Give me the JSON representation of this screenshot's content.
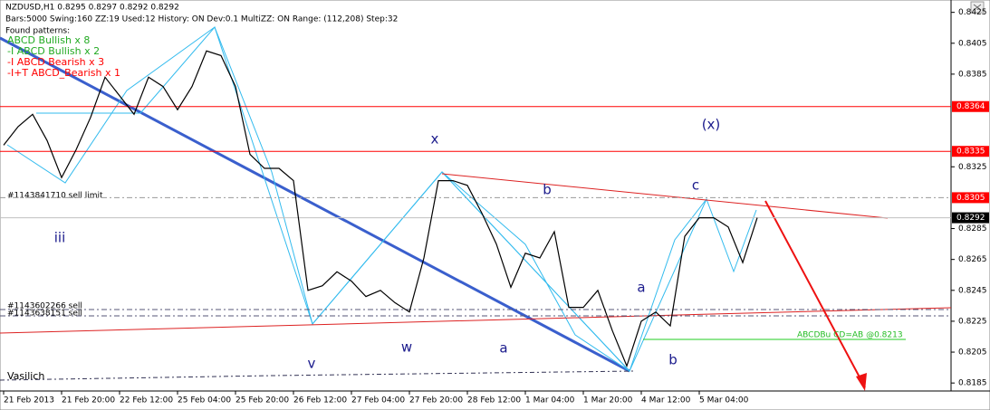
{
  "header": {
    "symbol_line": "NZDUSD,H1  0.8295 0.8297 0.8292 0.8292",
    "settings_line": "Bars:5000  Swing:160  ZZ:19  Used:12  History: ON Dev:0.1  MultiZZ: ON  Range: (112,208)  Step:32",
    "found": "Found patterns:"
  },
  "patterns": [
    {
      "text": " ABCD Bullish x 8",
      "color": "#22aa22"
    },
    {
      "text": "-I ABCD Bullish x 2",
      "color": "#22aa22"
    },
    {
      "text": "-I ABCD Bearish x 3",
      "color": "#ff0000"
    },
    {
      "text": "-I+T ABCD_Bearish x 1",
      "color": "#ff0000"
    }
  ],
  "chart_data": {
    "type": "line",
    "color": "#000000",
    "values": [
      0.8339,
      0.8351,
      0.8359,
      0.8342,
      0.8318,
      0.8336,
      0.8357,
      0.8383,
      0.8371,
      0.8359,
      0.8383,
      0.8377,
      0.8362,
      0.8377,
      0.84,
      0.8397,
      0.8377,
      0.8333,
      0.8324,
      0.8324,
      0.8316,
      0.8245,
      0.8248,
      0.8257,
      0.8251,
      0.8241,
      0.8245,
      0.8237,
      0.8231,
      0.8266,
      0.8316,
      0.8316,
      0.8313,
      0.8295,
      0.8275,
      0.8247,
      0.8269,
      0.8266,
      0.8283,
      0.8234,
      0.8234,
      0.8245,
      0.8219,
      0.8196,
      0.8225,
      0.8231,
      0.8222,
      0.828,
      0.8292,
      0.8292,
      0.8286,
      0.8263,
      0.8292
    ],
    "ylim": [
      0.8181,
      0.8433
    ],
    "yticks": [
      0.8425,
      0.8405,
      0.8385,
      0.8325,
      0.8285,
      0.8265,
      0.8245,
      0.8225,
      0.8205,
      0.8185
    ],
    "time_labels": [
      "21 Feb 2013",
      "21 Feb 20:00",
      "22 Feb 12:00",
      "25 Feb 04:00",
      "25 Feb 20:00",
      "26 Feb 12:00",
      "27 Feb 04:00",
      "27 Feb 20:00",
      "28 Feb 12:00",
      "1 Mar 04:00",
      "1 Mar 20:00",
      "4 Mar 12:00",
      "5 Mar 04:00"
    ],
    "levels": [
      {
        "value": 0.8364,
        "style": "solid"
      },
      {
        "value": 0.8335,
        "style": "solid"
      },
      {
        "value": 0.8305,
        "style": "dash"
      }
    ],
    "level_color": "#ff0000",
    "current_price": 0.8292,
    "order_labels": [
      "#1143841710 sell limit",
      "#1143602266 sell",
      "#1143638151 sell"
    ],
    "pattern_label": "ABCDBu CD=AB  @0.8213",
    "wave_labels": [
      "x",
      "(x)",
      "b",
      "c",
      "iii",
      "v",
      "w",
      "a",
      "a",
      "b"
    ],
    "author": "Vasilich"
  }
}
